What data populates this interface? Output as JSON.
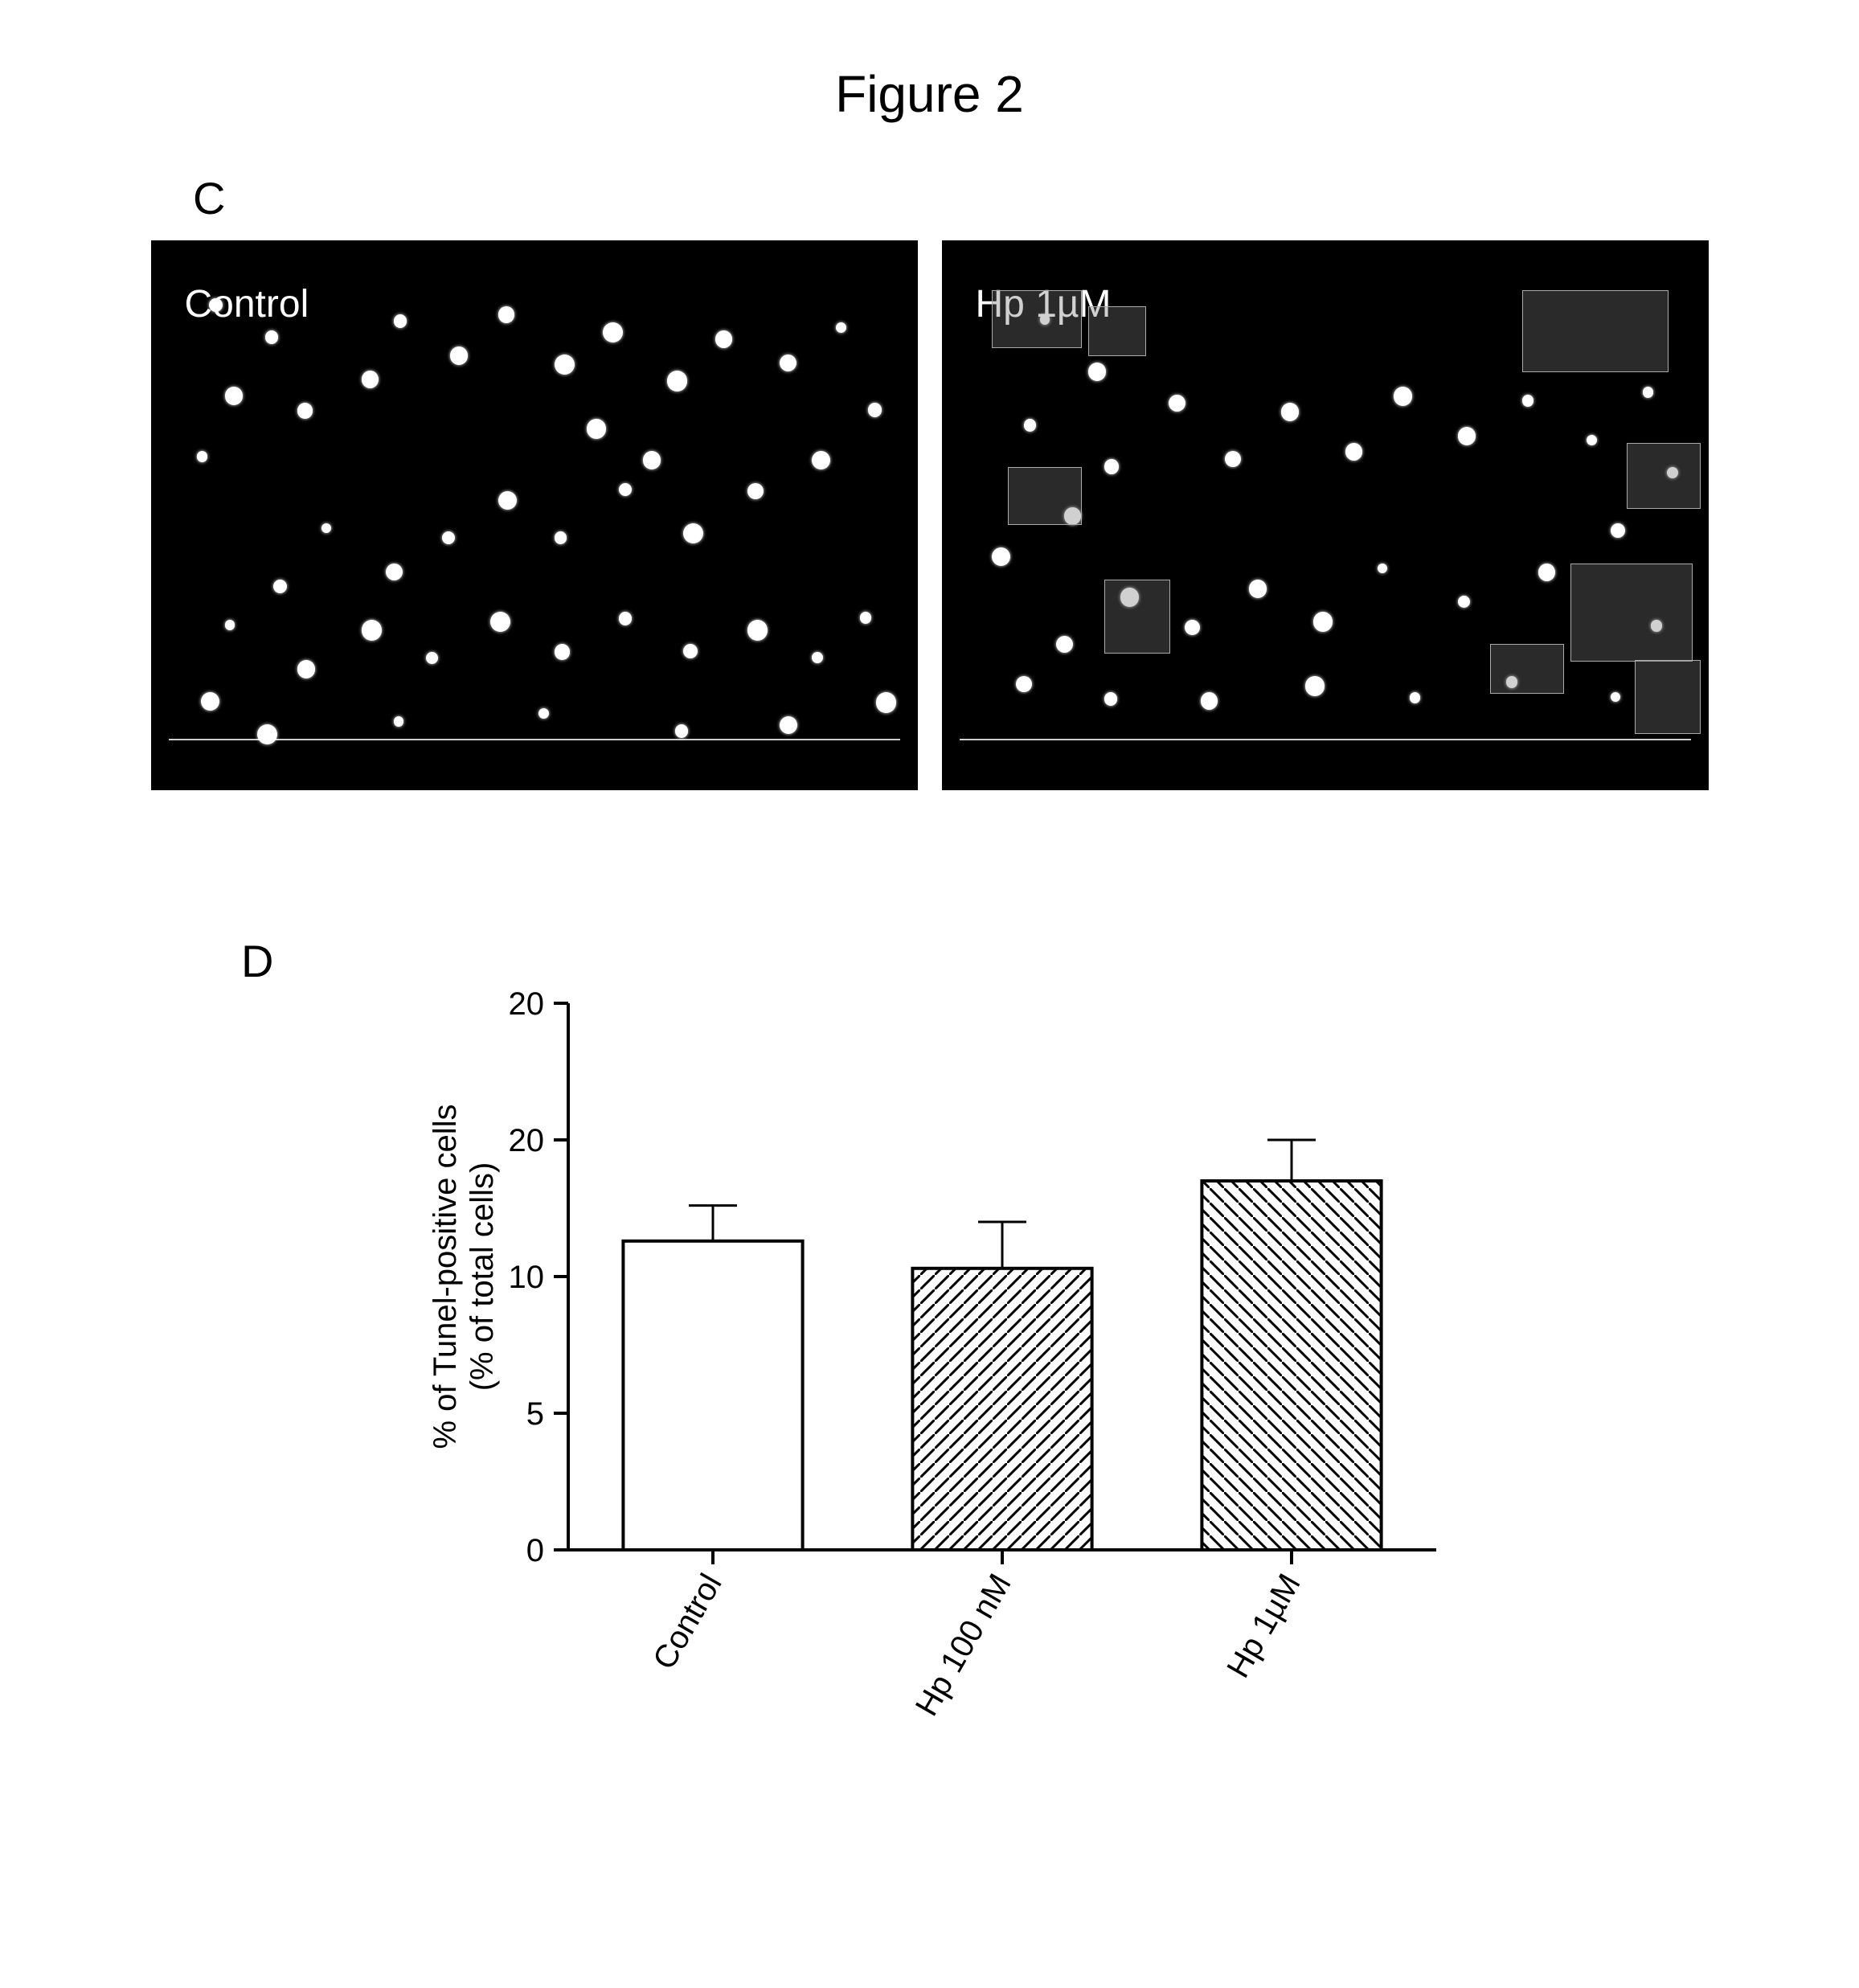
{
  "figure_title": "Figure 2",
  "panel_c": {
    "label": "C",
    "left_image_label": "Control",
    "right_image_label": "Hp 1µM",
    "background_color": "#000000",
    "spot_color": "#ffffff",
    "scale_line_color": "#cccccc",
    "left_spots": [
      [
        70,
        70
      ],
      [
        140,
        110
      ],
      [
        90,
        180
      ],
      [
        55,
        260
      ],
      [
        180,
        200
      ],
      [
        260,
        160
      ],
      [
        300,
        90
      ],
      [
        370,
        130
      ],
      [
        430,
        80
      ],
      [
        500,
        140
      ],
      [
        560,
        100
      ],
      [
        640,
        160
      ],
      [
        700,
        110
      ],
      [
        780,
        140
      ],
      [
        850,
        100
      ],
      [
        890,
        200
      ],
      [
        820,
        260
      ],
      [
        740,
        300
      ],
      [
        660,
        350
      ],
      [
        580,
        300
      ],
      [
        500,
        360
      ],
      [
        430,
        310
      ],
      [
        360,
        360
      ],
      [
        290,
        400
      ],
      [
        210,
        350
      ],
      [
        150,
        420
      ],
      [
        90,
        470
      ],
      [
        180,
        520
      ],
      [
        260,
        470
      ],
      [
        340,
        510
      ],
      [
        420,
        460
      ],
      [
        500,
        500
      ],
      [
        580,
        460
      ],
      [
        660,
        500
      ],
      [
        740,
        470
      ],
      [
        820,
        510
      ],
      [
        880,
        460
      ],
      [
        900,
        560
      ],
      [
        60,
        560
      ],
      [
        130,
        600
      ],
      [
        300,
        590
      ],
      [
        480,
        580
      ],
      [
        650,
        600
      ],
      [
        780,
        590
      ],
      [
        540,
        220
      ],
      [
        610,
        260
      ]
    ],
    "right_spots": [
      [
        120,
        90
      ],
      [
        180,
        150
      ],
      [
        100,
        220
      ],
      [
        200,
        270
      ],
      [
        280,
        190
      ],
      [
        350,
        260
      ],
      [
        420,
        200
      ],
      [
        500,
        250
      ],
      [
        560,
        180
      ],
      [
        640,
        230
      ],
      [
        720,
        190
      ],
      [
        800,
        240
      ],
      [
        870,
        180
      ],
      [
        900,
        280
      ],
      [
        830,
        350
      ],
      [
        740,
        400
      ],
      [
        640,
        440
      ],
      [
        540,
        400
      ],
      [
        460,
        460
      ],
      [
        380,
        420
      ],
      [
        300,
        470
      ],
      [
        220,
        430
      ],
      [
        140,
        490
      ],
      [
        90,
        540
      ],
      [
        200,
        560
      ],
      [
        320,
        560
      ],
      [
        450,
        540
      ],
      [
        580,
        560
      ],
      [
        700,
        540
      ],
      [
        830,
        560
      ],
      [
        880,
        470
      ],
      [
        60,
        380
      ],
      [
        150,
        330
      ]
    ],
    "right_blobs": [
      [
        720,
        60,
        180,
        100
      ],
      [
        850,
        250,
        90,
        80
      ],
      [
        780,
        400,
        150,
        120
      ],
      [
        860,
        520,
        80,
        90
      ],
      [
        680,
        500,
        90,
        60
      ],
      [
        60,
        60,
        110,
        70
      ],
      [
        180,
        80,
        70,
        60
      ],
      [
        80,
        280,
        90,
        70
      ],
      [
        200,
        420,
        80,
        90
      ]
    ]
  },
  "panel_d": {
    "label": "D",
    "chart": {
      "type": "bar",
      "categories": [
        "Control",
        "Hp 100 nM",
        "Hp 1µM"
      ],
      "values": [
        11.3,
        10.3,
        13.5
      ],
      "errors": [
        1.3,
        1.7,
        1.5
      ],
      "fills": [
        "none",
        "hatch-forward",
        "hatch-back"
      ],
      "bar_outline_color": "#000000",
      "bar_fill_color": "#ffffff",
      "hatch_color": "#000000",
      "ylabel_line1": "% of Tunel-positive cells",
      "ylabel_line2": "(% of total cells)",
      "ylim": [
        0,
        20
      ],
      "yticks": [
        0,
        5,
        10,
        20,
        20
      ],
      "ytick_labels": [
        "0",
        "5",
        "10",
        "20",
        "20"
      ],
      "axis_color": "#000000",
      "tick_fontsize": 40,
      "label_fontsize": 40,
      "xlabel_fontsize": 40,
      "bar_width": 0.62,
      "background_color": "#ffffff",
      "error_cap_width": 30,
      "error_line_width": 3
    }
  }
}
